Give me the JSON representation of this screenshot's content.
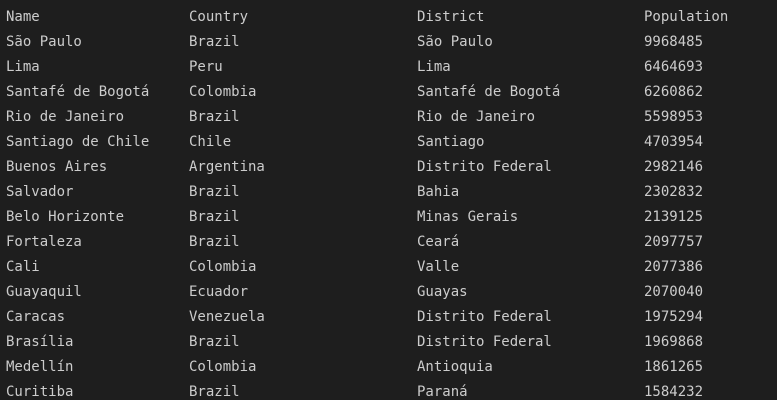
{
  "columns": {
    "name": "Name",
    "country": "Country",
    "district": "District",
    "population": "Population"
  },
  "rows": [
    {
      "name": "São Paulo",
      "country": "Brazil",
      "district": "São Paulo",
      "population": "9968485"
    },
    {
      "name": "Lima",
      "country": "Peru",
      "district": "Lima",
      "population": "6464693"
    },
    {
      "name": "Santafé de Bogotá",
      "country": "Colombia",
      "district": "Santafé de Bogotá",
      "population": "6260862"
    },
    {
      "name": "Rio de Janeiro",
      "country": "Brazil",
      "district": "Rio de Janeiro",
      "population": "5598953"
    },
    {
      "name": "Santiago de Chile",
      "country": "Chile",
      "district": "Santiago",
      "population": "4703954"
    },
    {
      "name": "Buenos Aires",
      "country": "Argentina",
      "district": "Distrito Federal",
      "population": "2982146"
    },
    {
      "name": "Salvador",
      "country": "Brazil",
      "district": "Bahia",
      "population": "2302832"
    },
    {
      "name": "Belo Horizonte",
      "country": "Brazil",
      "district": "Minas Gerais",
      "population": "2139125"
    },
    {
      "name": "Fortaleza",
      "country": "Brazil",
      "district": "Ceará",
      "population": "2097757"
    },
    {
      "name": "Cali",
      "country": "Colombia",
      "district": "Valle",
      "population": "2077386"
    },
    {
      "name": "Guayaquil",
      "country": "Ecuador",
      "district": "Guayas",
      "population": "2070040"
    },
    {
      "name": "Caracas",
      "country": "Venezuela",
      "district": "Distrito Federal",
      "population": "1975294"
    },
    {
      "name": "Brasília",
      "country": "Brazil",
      "district": "Distrito Federal",
      "population": "1969868"
    },
    {
      "name": "Medellín",
      "country": "Colombia",
      "district": "Antioquia",
      "population": "1861265"
    },
    {
      "name": "Curitiba",
      "country": "Brazil",
      "district": "Paraná",
      "population": "1584232"
    }
  ]
}
